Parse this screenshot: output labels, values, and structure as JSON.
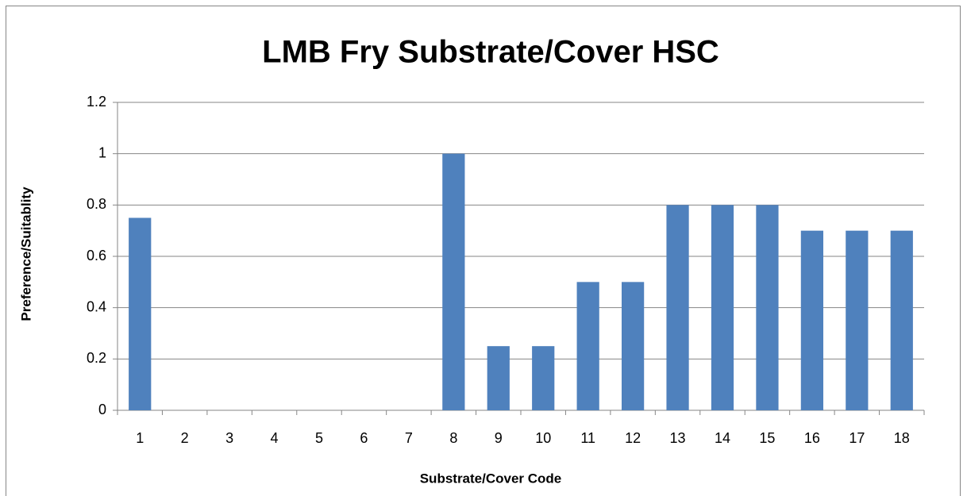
{
  "chart_data": {
    "type": "bar",
    "title": "LMB Fry Substrate/Cover HSC",
    "x_label": "Substrate/Cover Code",
    "y_label": "Preference/Suitablity",
    "categories": [
      "1",
      "2",
      "3",
      "4",
      "5",
      "6",
      "7",
      "8",
      "9",
      "10",
      "11",
      "12",
      "13",
      "14",
      "15",
      "16",
      "17",
      "18"
    ],
    "values": [
      0.75,
      0,
      0,
      0,
      0,
      0,
      0,
      1,
      0.25,
      0.25,
      0.5,
      0.5,
      0.8,
      0.8,
      0.8,
      0.7,
      0.7,
      0.7
    ],
    "color": "#4f81bd",
    "ylim": [
      0,
      1.2
    ],
    "yticks": [
      0,
      0.2,
      0.4,
      0.6,
      0.8,
      1,
      1.2
    ],
    "grid": true
  }
}
